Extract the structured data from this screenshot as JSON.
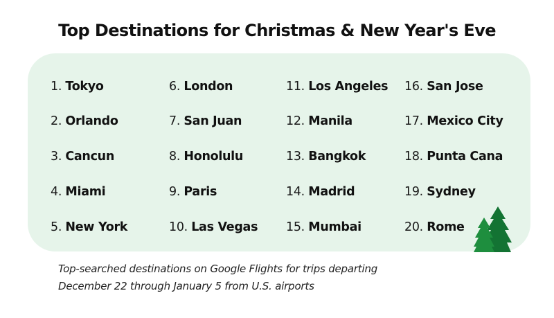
{
  "title": "Top Destinations for Christmas & New Year's Eve",
  "destinations": [
    {
      "rank": "1.",
      "name": "Tokyo"
    },
    {
      "rank": "2.",
      "name": "Orlando"
    },
    {
      "rank": "3.",
      "name": "Cancun"
    },
    {
      "rank": "4.",
      "name": "Miami"
    },
    {
      "rank": "5.",
      "name": "New York"
    },
    {
      "rank": "6.",
      "name": "London"
    },
    {
      "rank": "7.",
      "name": "San Juan"
    },
    {
      "rank": "8.",
      "name": "Honolulu"
    },
    {
      "rank": "9.",
      "name": "Paris"
    },
    {
      "rank": "10.",
      "name": "Las Vegas"
    },
    {
      "rank": "11.",
      "name": "Los Angeles"
    },
    {
      "rank": "12.",
      "name": "Manila"
    },
    {
      "rank": "13.",
      "name": "Bangkok"
    },
    {
      "rank": "14.",
      "name": "Madrid"
    },
    {
      "rank": "15.",
      "name": "Mumbai"
    },
    {
      "rank": "16.",
      "name": "San Jose"
    },
    {
      "rank": "17.",
      "name": "Mexico City"
    },
    {
      "rank": "18.",
      "name": "Punta Cana"
    },
    {
      "rank": "19.",
      "name": "Sydney"
    },
    {
      "rank": "20.",
      "name": "Rome"
    }
  ],
  "caption": {
    "line1": "Top-searched destinations on Google Flights for trips departing",
    "line2": "December 22 through January 5 from U.S. airports"
  },
  "colors": {
    "panel": "#e6f4ea",
    "tree_dark": "#137333",
    "tree_light": "#1e8e3e"
  },
  "decoration": {
    "icon": "christmas-trees-icon"
  }
}
